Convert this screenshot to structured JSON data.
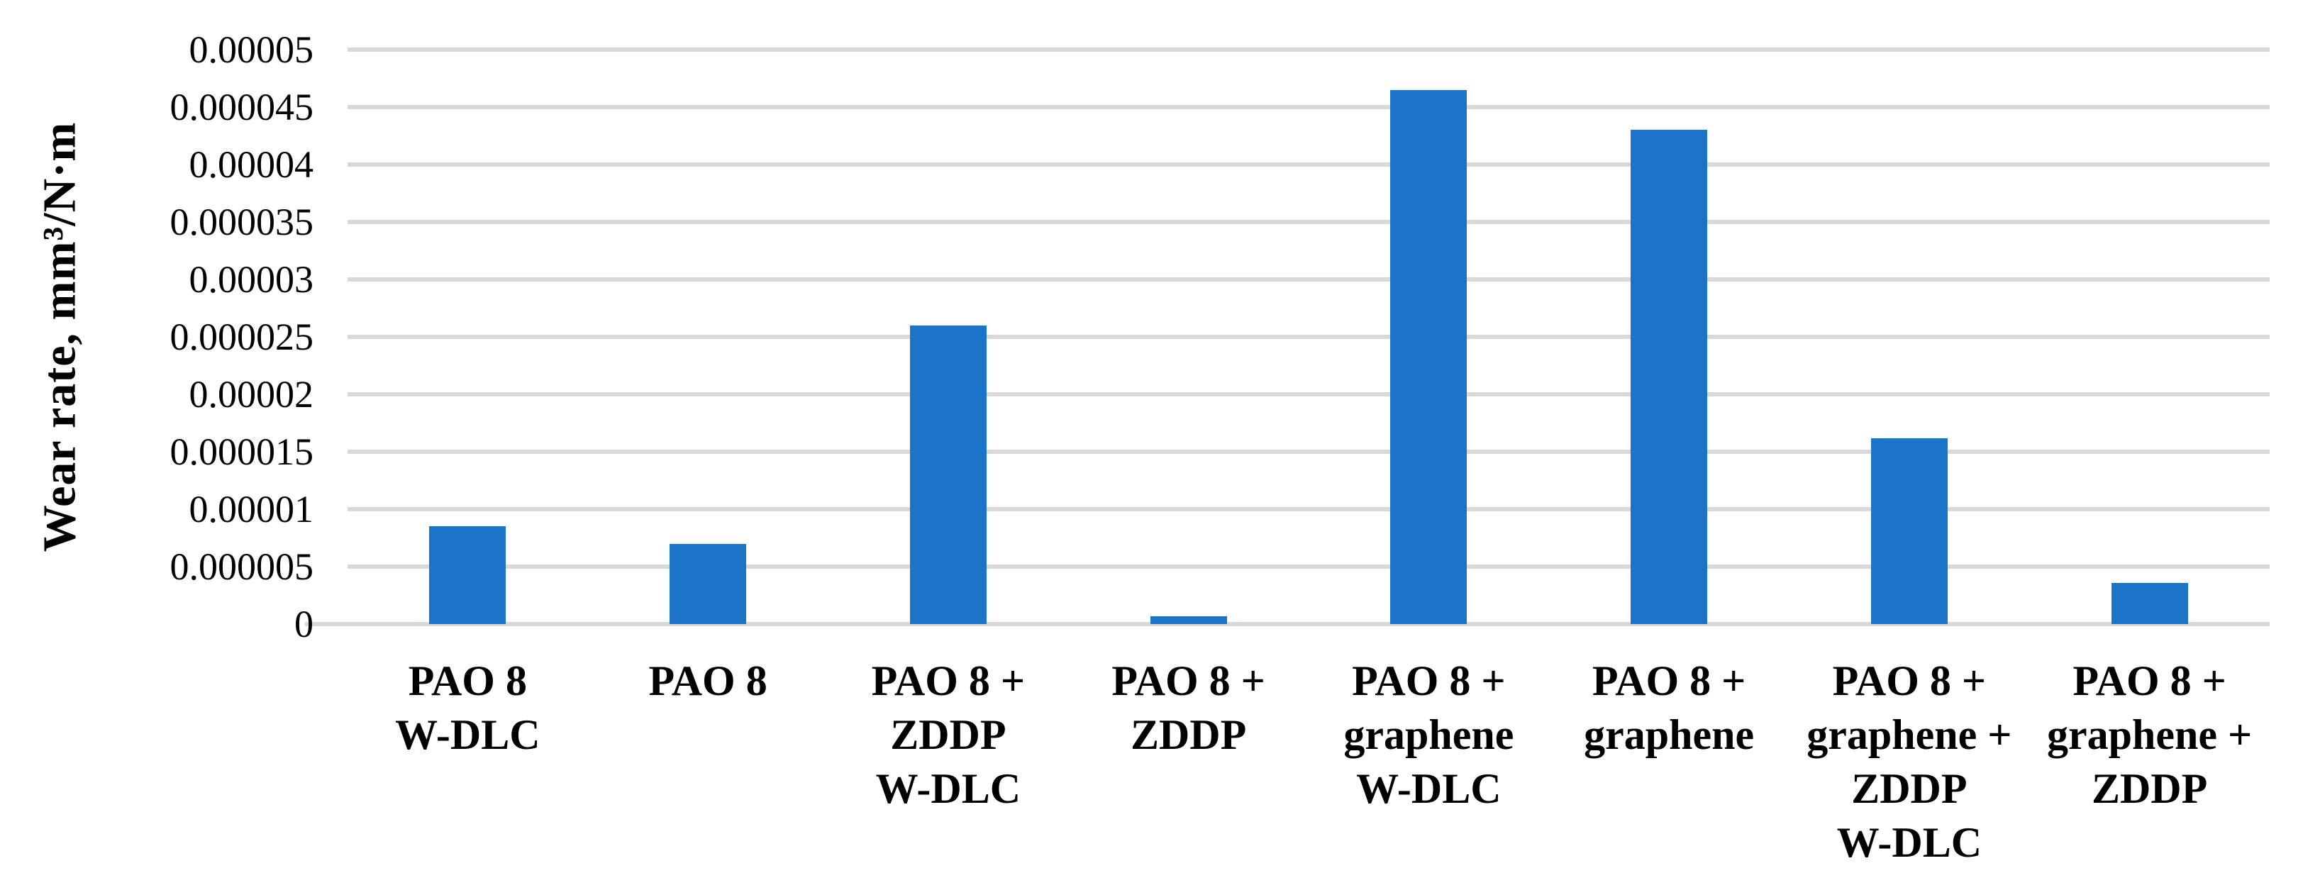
{
  "chart_data": {
    "type": "bar",
    "title": "",
    "xlabel": "",
    "ylabel": "Wear rate, mm³/N·m",
    "ylim": [
      0,
      5e-05
    ],
    "ytick_step": 5e-06,
    "yticks": [
      "0",
      "0.000005",
      "0.00001",
      "0.000015",
      "0.00002",
      "0.000025",
      "0.00003",
      "0.000035",
      "0.00004",
      "0.000045",
      "0.00005"
    ],
    "grid": "horizontal",
    "legend_position": "none",
    "bar_color": "#1b74c8",
    "gridline_color": "#d9d9d9",
    "categories": [
      "PAO 8 W-DLC",
      "PAO 8",
      "PAO 8 + ZDDP W-DLC",
      "PAO 8 + ZDDP",
      "PAO 8 + graphene W-DLC",
      "PAO 8 + graphene",
      "PAO 8 + graphene + ZDDP W-DLC",
      "PAO 8 + graphene + ZDDP"
    ],
    "category_lines": [
      [
        "PAO 8",
        "W-DLC"
      ],
      [
        "PAO 8"
      ],
      [
        "PAO 8 +",
        "ZDDP",
        "W-DLC"
      ],
      [
        "PAO 8 +",
        "ZDDP"
      ],
      [
        "PAO 8 +",
        "graphene",
        "W-DLC"
      ],
      [
        "PAO 8 +",
        "graphene"
      ],
      [
        "PAO 8 +",
        "graphene +",
        "ZDDP",
        "W-DLC"
      ],
      [
        "PAO 8 +",
        "graphene +",
        "ZDDP"
      ]
    ],
    "values": [
      8.5e-06,
      7e-06,
      2.6e-05,
      7e-07,
      4.65e-05,
      4.3e-05,
      1.62e-05,
      3.6e-06
    ]
  }
}
